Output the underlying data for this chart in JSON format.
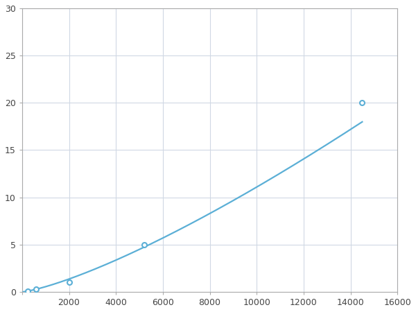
{
  "x_points": [
    250,
    600,
    2000,
    5200,
    14500
  ],
  "y_points": [
    0.1,
    0.3,
    1.0,
    5.0,
    20.0
  ],
  "line_color": "#5BAFD6",
  "marker_color": "#5BAFD6",
  "marker_size": 5,
  "line_width": 1.6,
  "xlim": [
    0,
    16000
  ],
  "ylim": [
    0,
    30
  ],
  "xticks": [
    0,
    2000,
    4000,
    6000,
    8000,
    10000,
    12000,
    14000,
    16000
  ],
  "yticks": [
    0,
    5,
    10,
    15,
    20,
    25,
    30
  ],
  "grid_color": "#d0d8e4",
  "background_color": "#ffffff",
  "spine_color": "#aaaaaa"
}
